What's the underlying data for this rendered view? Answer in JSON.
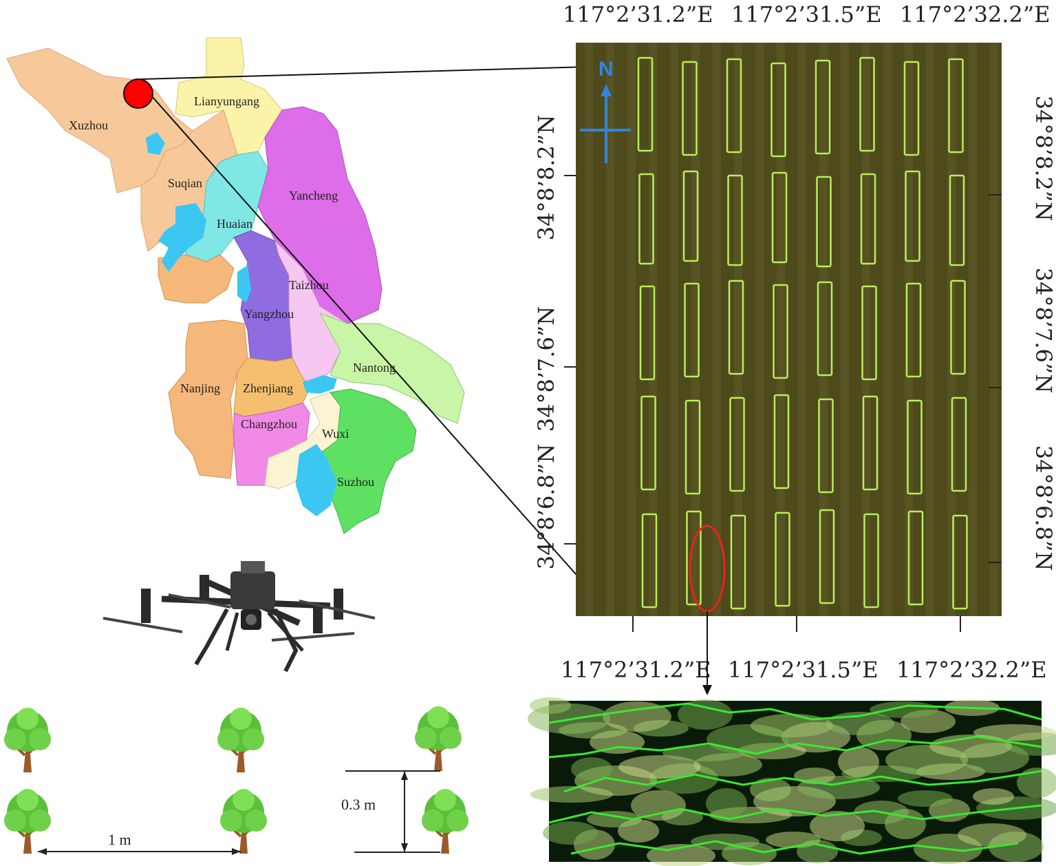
{
  "map": {
    "province_cities": [
      "Xuzhou",
      "Lianyungang",
      "Suqian",
      "Huaian",
      "Yancheng",
      "Taizhou",
      "Yangzhou",
      "Nantong",
      "Nanjing",
      "Zhenjiang",
      "Changzhou",
      "Wuxi",
      "Suzhou"
    ],
    "colors": {
      "Xuzhou": "#f7c99a",
      "Lianyungang": "#fbf3a8",
      "Suqian": "#f7c99a",
      "Huaian": "#7fe7e4",
      "Yancheng": "#dd6de8",
      "Taizhou": "#f6c7f0",
      "Yangzhou": "#8f6ce0",
      "Nantong": "#c9f5a6",
      "Nanjing": "#f5b87a",
      "Zhenjiang": "#f5c06e",
      "Changzhou": "#f08ae6",
      "Wuxi": "#fbf3d2",
      "Suzhou": "#5ee062",
      "water": "#3bc7f2",
      "marker": "#ff0000"
    }
  },
  "field": {
    "north_label": "N",
    "top_lon": [
      "117°2’31.2”E",
      "117°2’31.5”E",
      "117°2’32.2”E"
    ],
    "bottom_lon": [
      "117°2’31.2”E",
      "117°2’31.5”E",
      "117°2’32.2”E"
    ],
    "left_lat": [
      "34°8’8.2”N",
      "34°8’7.6”N",
      "34°8’6.8”N"
    ],
    "right_lat": [
      "34°8’8.2”N",
      "34°8’7.6”N",
      "34°8’6.8”N"
    ],
    "plot_rows": 5,
    "plot_cols": 8,
    "colors": {
      "background": "#4f4a1c",
      "plot_outline": "#b7f05a",
      "highlight": "#e8241c",
      "compass": "#2e86de"
    }
  },
  "spacing": {
    "row_spacing_label": "1 m",
    "plant_spacing_label": "0.3 m"
  },
  "icons": [
    "red-location-marker-icon",
    "drone-icon",
    "tree-icon",
    "north-arrow-icon"
  ]
}
